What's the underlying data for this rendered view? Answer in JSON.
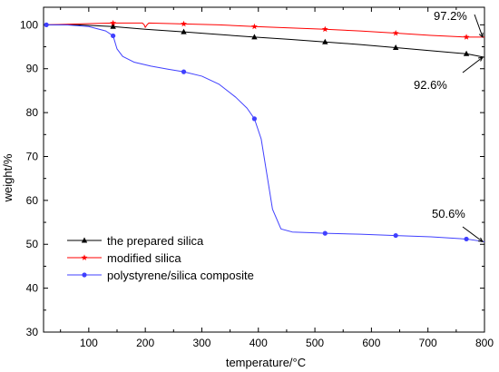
{
  "chart_data": {
    "type": "line",
    "xlabel": "temperature/°C",
    "ylabel": "weight/%",
    "xlim": [
      20,
      800
    ],
    "ylim": [
      30,
      104
    ],
    "xticks": [
      100,
      200,
      300,
      400,
      500,
      600,
      700,
      800
    ],
    "yticks": [
      30,
      40,
      50,
      60,
      70,
      80,
      90,
      100
    ],
    "grid": false,
    "legend_position": "lower-left",
    "series": [
      {
        "name": "the prepared silica",
        "color": "#000000",
        "marker": "triangle",
        "x": [
          25,
          80,
          143,
          200,
          268,
          330,
          393,
          455,
          518,
          580,
          643,
          705,
          768,
          800
        ],
        "y": [
          100.0,
          100.0,
          99.6,
          99.0,
          98.4,
          97.8,
          97.2,
          96.7,
          96.1,
          95.5,
          94.8,
          94.1,
          93.4,
          92.6
        ],
        "markers_x": [
          143,
          268,
          393,
          518,
          643,
          768
        ],
        "markers_y": [
          99.6,
          98.4,
          97.2,
          96.1,
          94.8,
          93.4
        ]
      },
      {
        "name": "modified silica",
        "color": "#ff0000",
        "marker": "star",
        "x": [
          25,
          80,
          143,
          195,
          198,
          200,
          203,
          206,
          268,
          330,
          393,
          455,
          518,
          580,
          643,
          705,
          768,
          800
        ],
        "y": [
          100.0,
          100.2,
          100.4,
          100.4,
          100.0,
          99.4,
          100.0,
          100.4,
          100.2,
          100.0,
          99.6,
          99.3,
          99.0,
          98.6,
          98.1,
          97.6,
          97.2,
          97.2
        ],
        "markers_x": [
          143,
          268,
          393,
          518,
          643,
          768
        ],
        "markers_y": [
          100.4,
          100.2,
          99.6,
          99.0,
          98.1,
          97.2
        ]
      },
      {
        "name": "polystyrene/silica composite",
        "color": "#4040ff",
        "marker": "circle",
        "x": [
          25,
          60,
          100,
          130,
          143,
          150,
          160,
          180,
          210,
          240,
          268,
          300,
          330,
          360,
          380,
          393,
          405,
          415,
          425,
          440,
          460,
          500,
          518,
          580,
          643,
          705,
          768,
          800
        ],
        "y": [
          100.0,
          100.0,
          99.6,
          98.6,
          97.5,
          94.5,
          92.8,
          91.5,
          90.6,
          89.9,
          89.3,
          88.3,
          86.5,
          83.5,
          81.0,
          78.6,
          74.0,
          66.0,
          58.0,
          53.5,
          52.8,
          52.6,
          52.5,
          52.3,
          52.0,
          51.7,
          51.2,
          50.6
        ],
        "markers_x": [
          25,
          143,
          268,
          393,
          518,
          643,
          768
        ],
        "markers_y": [
          100.0,
          97.5,
          89.3,
          78.6,
          52.5,
          52.0,
          51.2
        ]
      }
    ],
    "annotations": [
      {
        "text": "97.2%",
        "x": 800,
        "y": 97.2
      },
      {
        "text": "92.6%",
        "x": 800,
        "y": 92.6
      },
      {
        "text": "50.6%",
        "x": 800,
        "y": 50.6
      }
    ]
  }
}
